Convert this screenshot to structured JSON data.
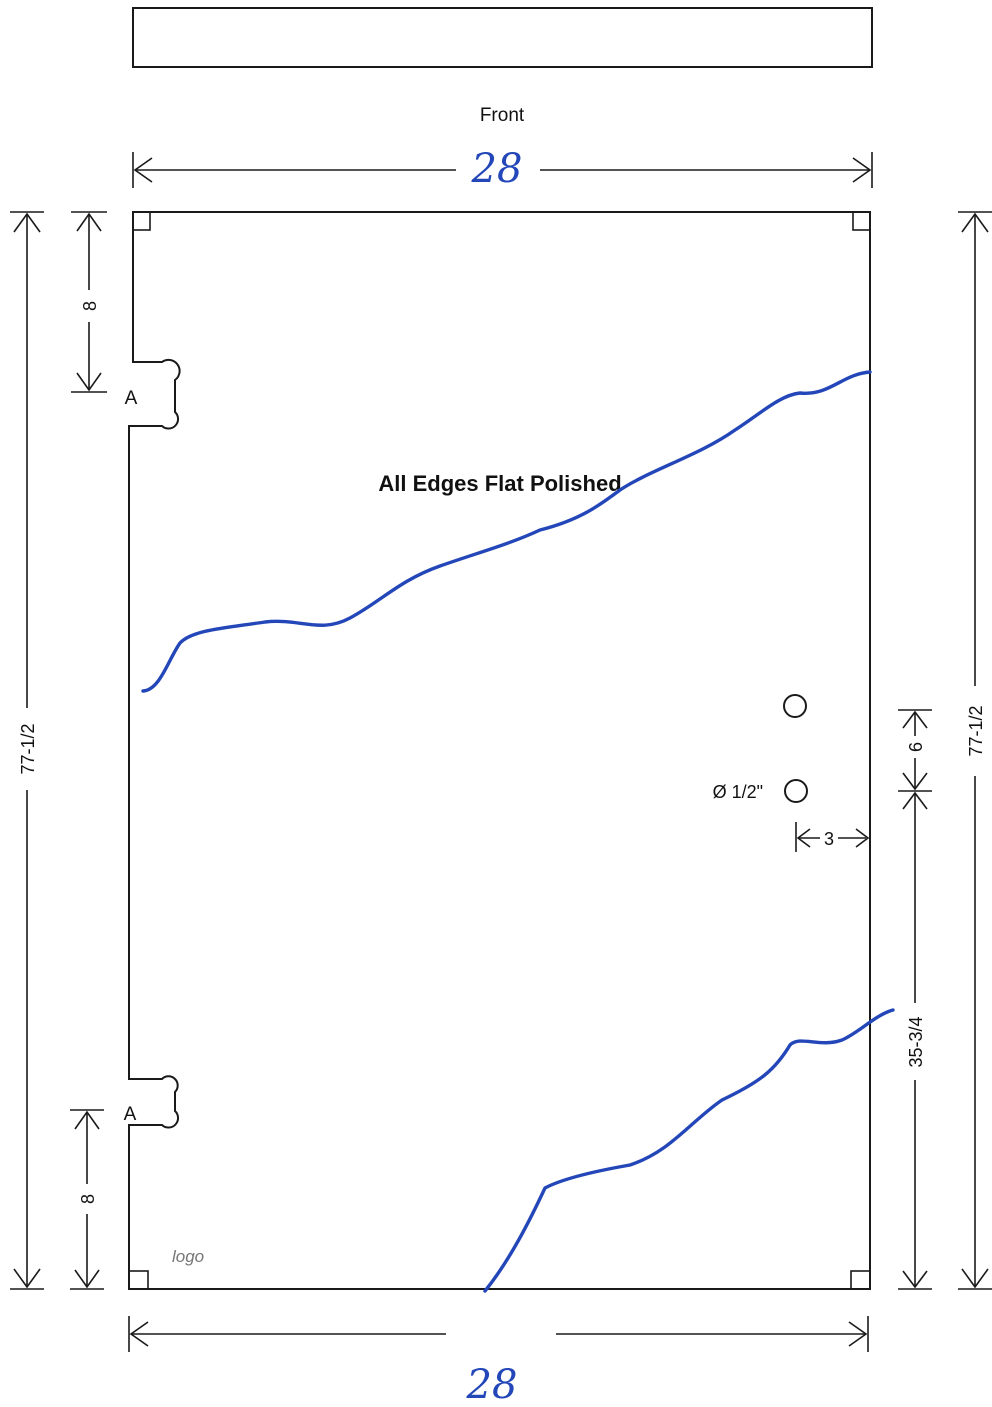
{
  "front_label": "Front",
  "width_top_handwritten": "28",
  "width_bottom_handwritten": "28",
  "note": "All Edges Flat Polished",
  "notch_top_label": "A",
  "notch_bottom_label": "A",
  "dim_notch_top": "8",
  "dim_notch_bottom": "8",
  "dim_height_left": "77-1/2",
  "dim_height_right": "77-1/2",
  "dim_hole_spacing": "6",
  "dim_hole_height": "35-3/4",
  "dim_hole_edge": "3",
  "hole_label": "Ø 1/2\"",
  "logo_text": "logo",
  "colors": {
    "line": "#1a1a1a",
    "ink": "#2346b8"
  }
}
